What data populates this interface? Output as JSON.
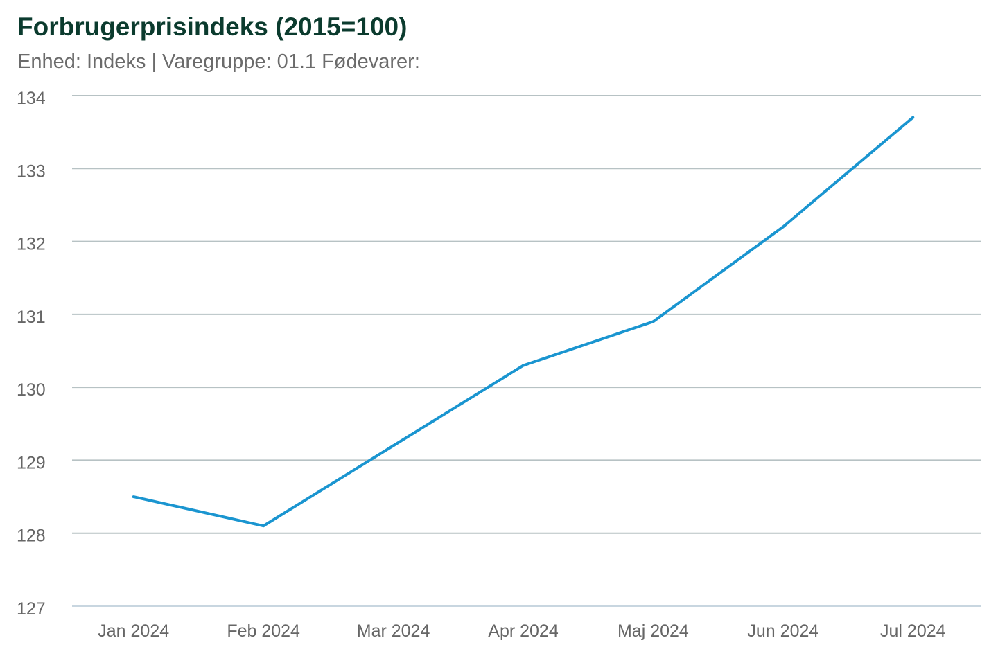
{
  "chart_data": {
    "type": "line",
    "title": "Forbrugerprisindeks (2015=100)",
    "subtitle": "Enhed: Indeks | Varegruppe: 01.1 Fødevarer:",
    "xlabel": "",
    "ylabel": "",
    "categories": [
      "Jan 2024",
      "Feb 2024",
      "Mar 2024",
      "Apr 2024",
      "Maj 2024",
      "Jun 2024",
      "Jul 2024"
    ],
    "series": [
      {
        "values": [
          128.5,
          128.1,
          129.2,
          130.3,
          130.9,
          132.2,
          133.7
        ],
        "color": "#1a95d0"
      }
    ],
    "ylim": [
      127,
      134
    ],
    "yticks": [
      127,
      128,
      129,
      130,
      131,
      132,
      133,
      134
    ],
    "grid": true,
    "legend": "none",
    "colors": {
      "title": "#0b3b2e",
      "grid": "#b7c2c4",
      "line": "#1a95d0"
    }
  }
}
